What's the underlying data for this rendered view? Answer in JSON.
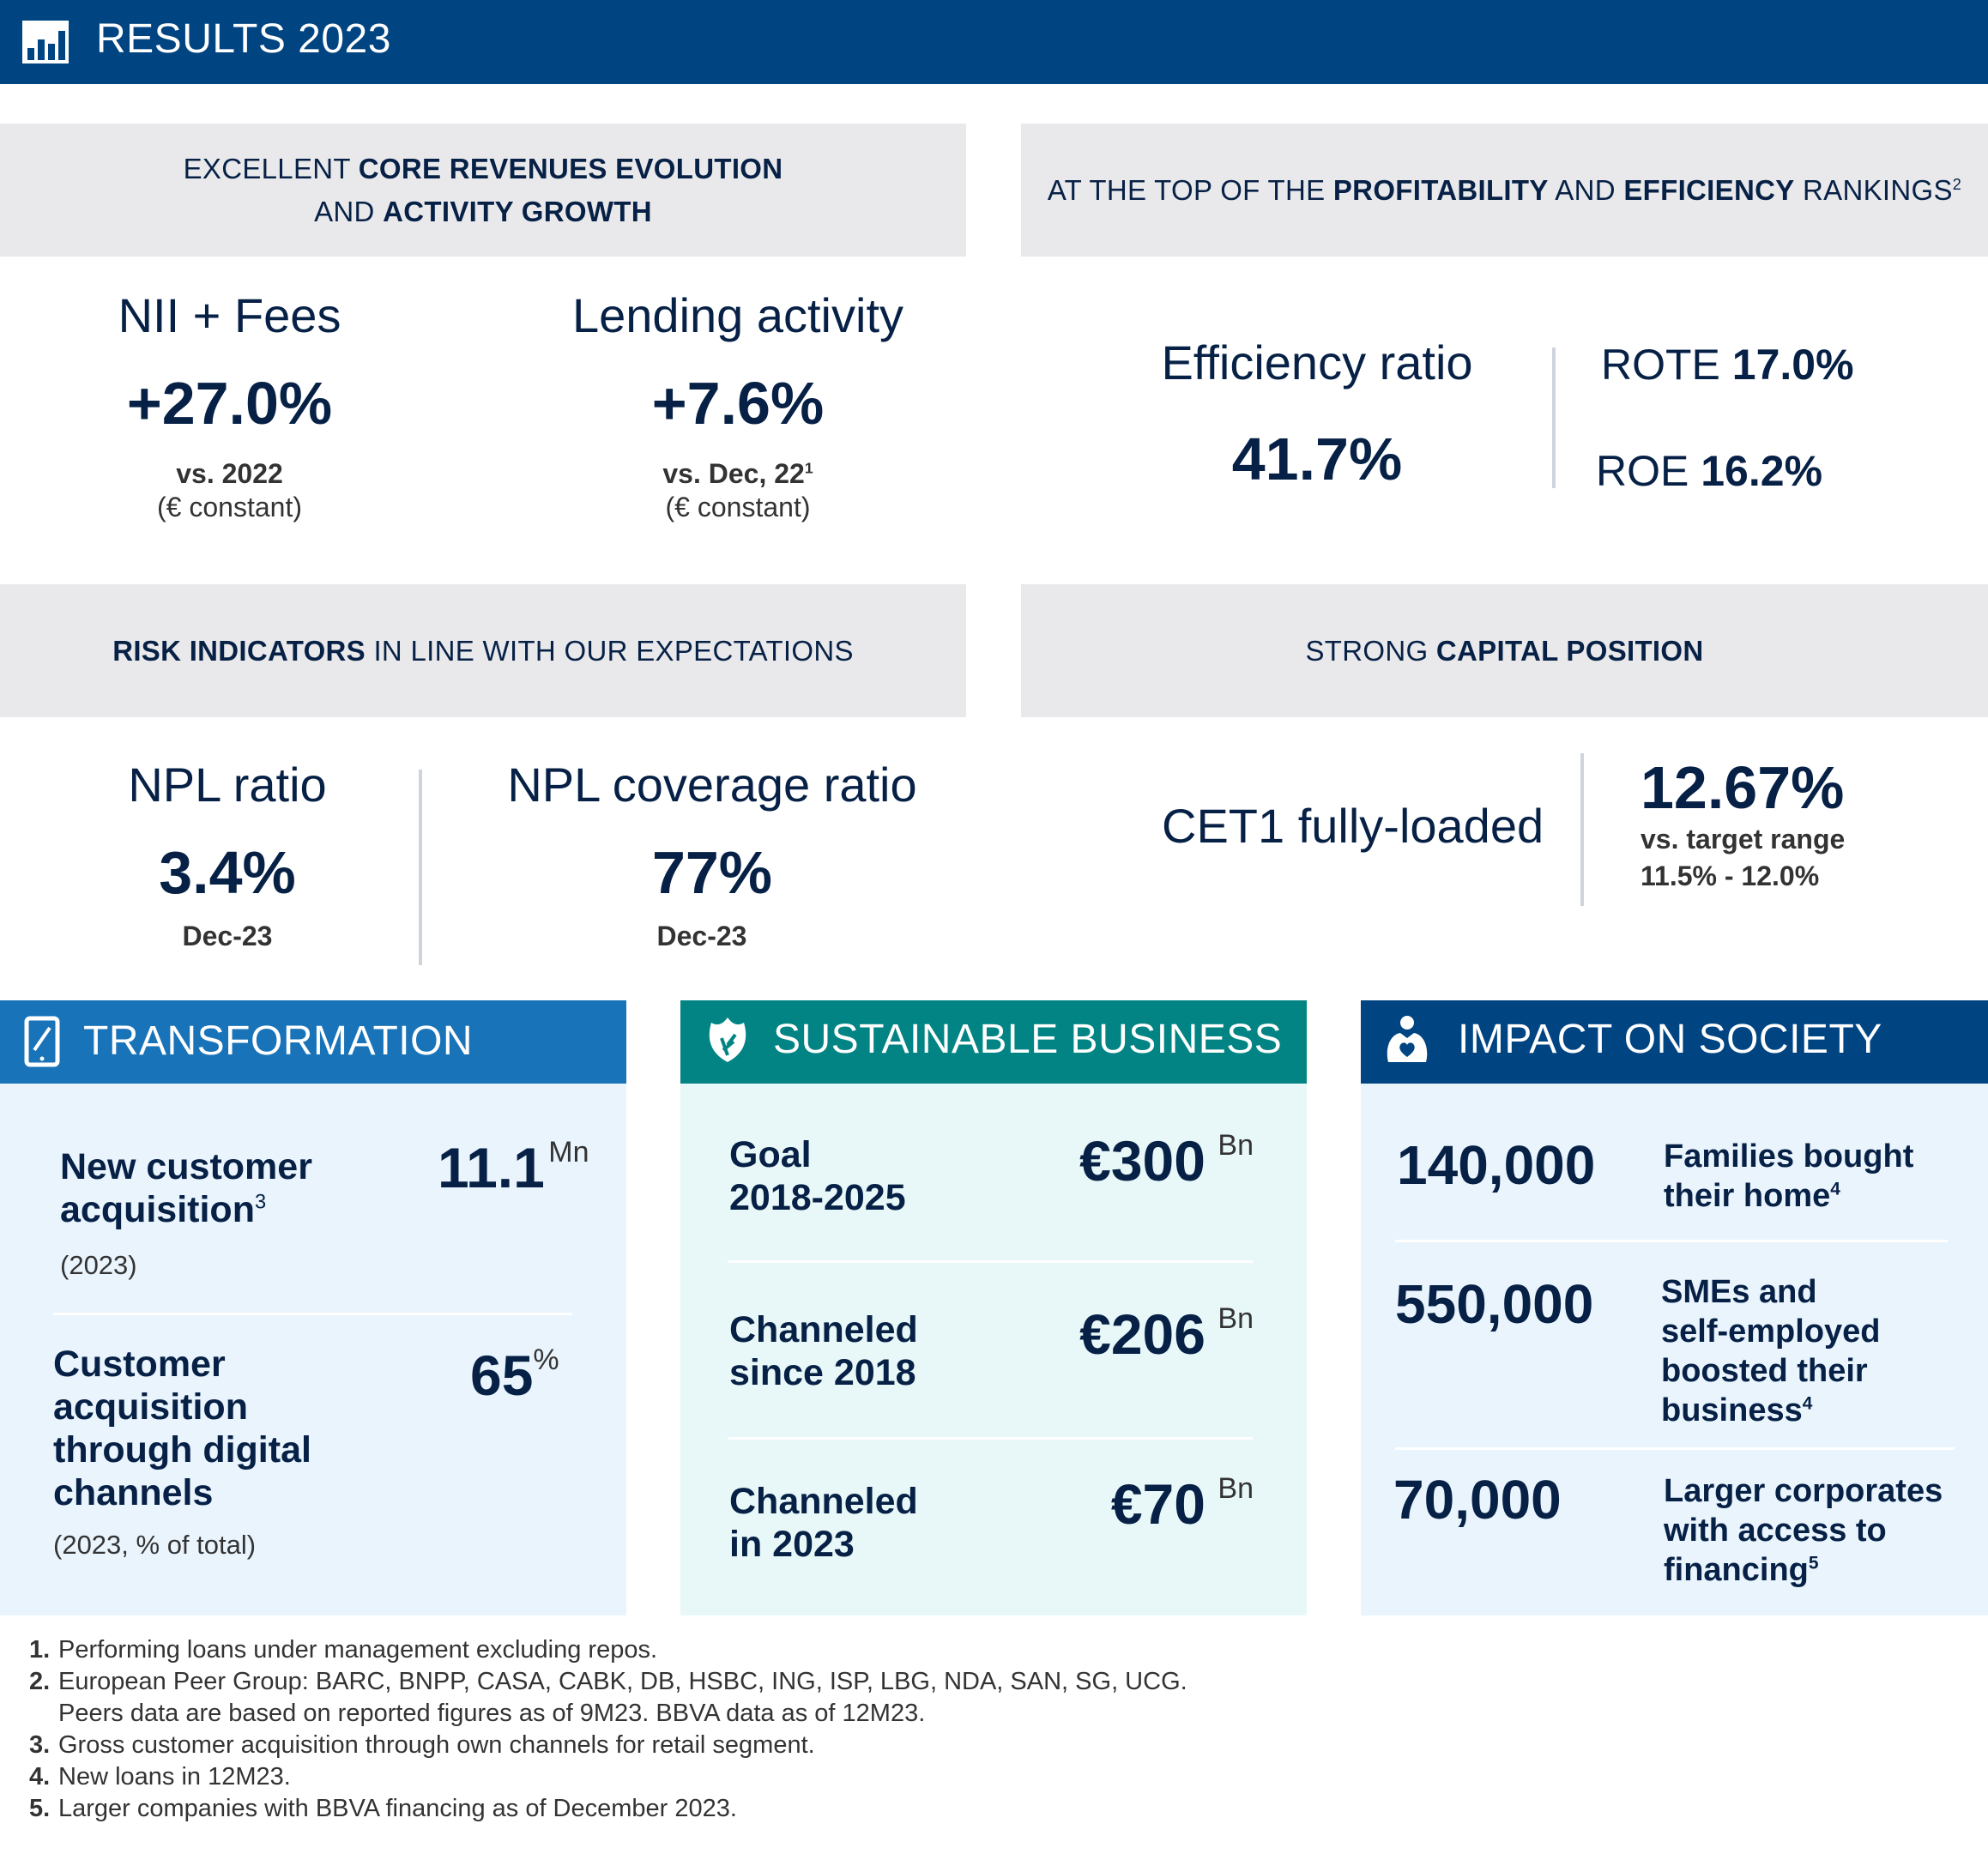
{
  "header": {
    "title": "RESULTS 2023",
    "icon": "bar-chart-icon"
  },
  "core": {
    "heading_pre": "EXCELLENT ",
    "heading_bold1": "CORE REVENUES EVOLUTION",
    "heading_mid": "AND ",
    "heading_bold2": "ACTIVITY GROWTH",
    "nii": {
      "label": "NII + Fees",
      "value": "+27.0%",
      "sub1": "vs. 2022",
      "sub2": "(€ constant)"
    },
    "lending": {
      "label": "Lending activity",
      "value": "+7.6%",
      "sub1": "vs. Dec, 22",
      "sub1_sup": "1",
      "sub2": "(€ constant)"
    }
  },
  "profit": {
    "heading_pre": "AT THE TOP OF THE ",
    "heading_bold1": "PROFITABILITY",
    "heading_mid": " AND ",
    "heading_bold2": "EFFICIENCY",
    "heading_post": " RANKINGS",
    "heading_sup": "2",
    "efficiency": {
      "label": "Efficiency ratio",
      "value": "41.7%"
    },
    "rote": {
      "label": "ROTE ",
      "value": "17.0%"
    },
    "roe": {
      "label": "ROE ",
      "value": "16.2%"
    }
  },
  "risk": {
    "heading_bold": "RISK INDICATORS",
    "heading_post": " IN LINE WITH OUR EXPECTATIONS",
    "npl": {
      "label": "NPL ratio",
      "value": "3.4%",
      "sub": "Dec-23"
    },
    "coverage": {
      "label": "NPL coverage ratio",
      "value": "77%",
      "sub": "Dec-23"
    }
  },
  "capital": {
    "heading_pre": "STRONG ",
    "heading_bold": "CAPITAL POSITION",
    "cet1": {
      "label": "CET1 fully-loaded",
      "value": "12.67%",
      "sub1": "vs. target range",
      "sub2": "11.5% - 12.0%"
    }
  },
  "transformation": {
    "title": "TRANSFORMATION",
    "icon": "tablet-icon",
    "items": [
      {
        "label1": "New customer",
        "label2": "acquisition",
        "sup": "3",
        "note": "(2023)",
        "value": "11.1",
        "unit": "Mn"
      },
      {
        "label1": "Customer",
        "label2": "acquisition",
        "label3": "through digital",
        "label4": "channels",
        "note": "(2023, % of total)",
        "value": "65",
        "unit": "%"
      }
    ]
  },
  "sustainable": {
    "title": "SUSTAINABLE BUSINESS",
    "icon": "leaf-icon",
    "items": [
      {
        "label1": "Goal",
        "label2": "2018-2025",
        "value": "€300",
        "unit": "Bn"
      },
      {
        "label1": "Channeled",
        "label2": "since 2018",
        "value": "€206",
        "unit": "Bn"
      },
      {
        "label1": "Channeled",
        "label2": "in 2023",
        "value": "€70",
        "unit": "Bn"
      }
    ]
  },
  "society": {
    "title": "IMPACT ON SOCIETY",
    "icon": "people-heart-icon",
    "items": [
      {
        "value": "140,000",
        "lines": [
          "Families bought",
          "their home"
        ],
        "sup": "4"
      },
      {
        "value": "550,000",
        "lines": [
          "SMEs and",
          "self-employed",
          "boosted their",
          "business"
        ],
        "sup": "4"
      },
      {
        "value": "70,000",
        "lines": [
          "Larger corporates",
          "with access to",
          "financing"
        ],
        "sup": "5"
      }
    ]
  },
  "footnotes": [
    {
      "num": "1.",
      "text": "Performing loans under management excluding repos."
    },
    {
      "num": "2.",
      "text": "European Peer Group: BARC, BNPP, CASA, CABK, DB, HSBC, ING, ISP, LBG, NDA, SAN, SG, UCG."
    },
    {
      "num": "",
      "text": "Peers data are based on reported figures as of 9M23. BBVA data as of 12M23."
    },
    {
      "num": "3.",
      "text": "Gross customer acquisition through own channels for retail segment."
    },
    {
      "num": "4.",
      "text": "New loans in 12M23."
    },
    {
      "num": "5.",
      "text": "Larger companies with BBVA financing as of December 2023."
    }
  ]
}
